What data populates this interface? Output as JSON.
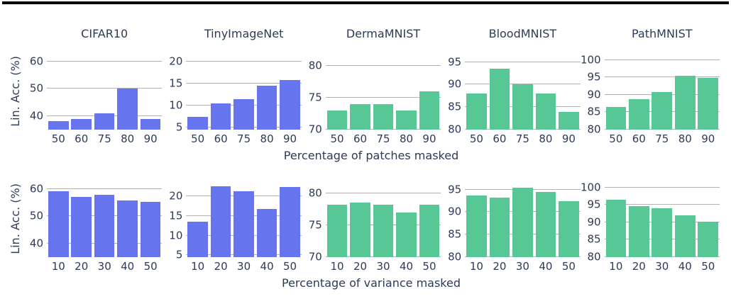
{
  "figure": {
    "background": "#ffffff",
    "text_color": "#2e3a59",
    "grid_color": "#b2b2b2",
    "top_rule_color": "#000000",
    "palette": {
      "blue": "#6674ee",
      "green": "#57c795"
    }
  },
  "rows": [
    {
      "id": "patches",
      "ylabel": "Lin. Acc. (%)",
      "xlabel": "Percentage of patches masked",
      "show_titles": true
    },
    {
      "id": "variance",
      "ylabel": "Lin. Acc. (%)",
      "xlabel": "Percentage of variance masked",
      "show_titles": false
    }
  ],
  "chart_data": [
    {
      "type": "bar",
      "row": 0,
      "col": 0,
      "title": "CIFAR10",
      "color": "#6674ee",
      "categories": [
        "50",
        "60",
        "75",
        "80",
        "90"
      ],
      "values": [
        38,
        39,
        41,
        50,
        39
      ],
      "ylim": [
        35,
        63
      ],
      "yticks": [
        40,
        50,
        60
      ],
      "xlabel": "Percentage of patches masked",
      "ylabel": "Lin. Acc. (%)"
    },
    {
      "type": "bar",
      "row": 0,
      "col": 1,
      "title": "TinyImageNet",
      "color": "#6674ee",
      "categories": [
        "50",
        "60",
        "75",
        "80",
        "90"
      ],
      "values": [
        7.5,
        10.5,
        11.5,
        14.5,
        15.8
      ],
      "ylim": [
        4.5,
        22
      ],
      "yticks": [
        5,
        10,
        15,
        20
      ],
      "xlabel": "Percentage of patches masked",
      "ylabel": "Lin. Acc. (%)"
    },
    {
      "type": "bar",
      "row": 0,
      "col": 2,
      "title": "DermaMNIST",
      "color": "#57c795",
      "categories": [
        "50",
        "60",
        "75",
        "80",
        "90"
      ],
      "values": [
        73,
        74,
        74,
        73,
        76
      ],
      "ylim": [
        70,
        82
      ],
      "yticks": [
        70,
        75,
        80
      ],
      "xlabel": "Percentage of patches masked",
      "ylabel": "Lin. Acc. (%)"
    },
    {
      "type": "bar",
      "row": 0,
      "col": 3,
      "title": "BloodMNIST",
      "color": "#57c795",
      "categories": [
        "50",
        "60",
        "75",
        "80",
        "90"
      ],
      "values": [
        88,
        93.5,
        90,
        88,
        84
      ],
      "ylim": [
        80,
        97
      ],
      "yticks": [
        80,
        85,
        90,
        95
      ],
      "xlabel": "Percentage of patches masked",
      "ylabel": "Lin. Acc. (%)"
    },
    {
      "type": "bar",
      "row": 0,
      "col": 4,
      "title": "PathMNIST",
      "color": "#57c795",
      "categories": [
        "50",
        "60",
        "75",
        "80",
        "90"
      ],
      "values": [
        86.5,
        88.8,
        90.8,
        95.5,
        94.8
      ],
      "ylim": [
        80,
        102
      ],
      "yticks": [
        80,
        85,
        90,
        95,
        100
      ],
      "xlabel": "Percentage of patches masked",
      "ylabel": "Lin. Acc. (%)"
    },
    {
      "type": "bar",
      "row": 1,
      "col": 0,
      "title": "CIFAR10",
      "color": "#6674ee",
      "categories": [
        "10",
        "20",
        "30",
        "40",
        "50"
      ],
      "values": [
        59,
        57,
        57.8,
        55.7,
        55.3
      ],
      "ylim": [
        35,
        63
      ],
      "yticks": [
        40,
        50,
        60
      ],
      "xlabel": "Percentage of variance masked",
      "ylabel": "Lin. Acc. (%)"
    },
    {
      "type": "bar",
      "row": 1,
      "col": 1,
      "title": "TinyImageNet",
      "color": "#6674ee",
      "categories": [
        "10",
        "20",
        "30",
        "40",
        "50"
      ],
      "values": [
        13.5,
        22.5,
        21.3,
        16.7,
        22.3
      ],
      "ylim": [
        4.5,
        24
      ],
      "yticks": [
        5,
        10,
        15,
        20
      ],
      "xlabel": "Percentage of variance masked",
      "ylabel": "Lin. Acc. (%)"
    },
    {
      "type": "bar",
      "row": 1,
      "col": 2,
      "title": "DermaMNIST",
      "color": "#57c795",
      "categories": [
        "10",
        "20",
        "30",
        "40",
        "50"
      ],
      "values": [
        78.2,
        78.6,
        78.2,
        77,
        78.2
      ],
      "ylim": [
        70,
        82
      ],
      "yticks": [
        70,
        75,
        80
      ],
      "xlabel": "Percentage of variance masked",
      "ylabel": "Lin. Acc. (%)"
    },
    {
      "type": "bar",
      "row": 1,
      "col": 3,
      "title": "BloodMNIST",
      "color": "#57c795",
      "categories": [
        "10",
        "20",
        "30",
        "40",
        "50"
      ],
      "values": [
        93.7,
        93.3,
        95.4,
        94.5,
        92.4
      ],
      "ylim": [
        80,
        97
      ],
      "yticks": [
        80,
        85,
        90,
        95
      ],
      "xlabel": "Percentage of variance masked",
      "ylabel": "Lin. Acc. (%)"
    },
    {
      "type": "bar",
      "row": 1,
      "col": 4,
      "title": "PathMNIST",
      "color": "#57c795",
      "categories": [
        "10",
        "20",
        "30",
        "40",
        "50"
      ],
      "values": [
        96.5,
        94.6,
        94,
        92,
        90.2
      ],
      "ylim": [
        80,
        102
      ],
      "yticks": [
        80,
        85,
        90,
        95,
        100
      ],
      "xlabel": "Percentage of variance masked",
      "ylabel": "Lin. Acc. (%)"
    }
  ]
}
